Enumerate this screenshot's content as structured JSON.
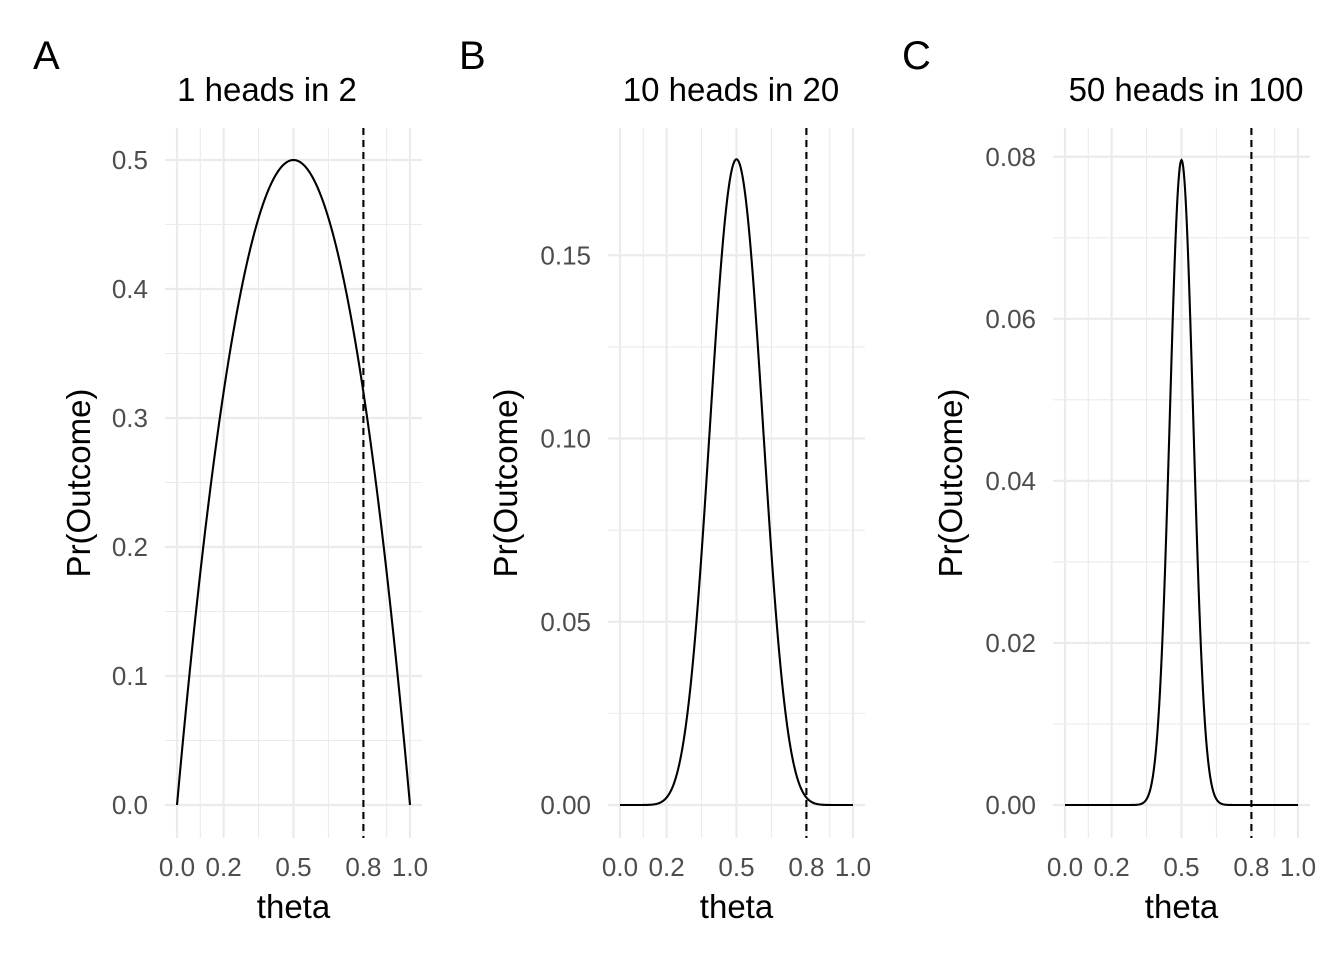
{
  "chart_data": [
    {
      "type": "line",
      "tag": "A",
      "title": "1 heads in 2",
      "xlabel": "theta",
      "ylabel": "Pr(Outcome)",
      "xlim": [
        0,
        1
      ],
      "ylim": [
        0,
        0.5
      ],
      "x_ticks": [
        0.0,
        0.2,
        0.5,
        0.8,
        1.0
      ],
      "x_tick_labels": [
        "0.0",
        "0.2",
        "0.5",
        "0.8",
        "1.0"
      ],
      "y_ticks": [
        0.0,
        0.1,
        0.2,
        0.3,
        0.4,
        0.5
      ],
      "y_tick_labels": [
        "0.0",
        "0.1",
        "0.2",
        "0.3",
        "0.4",
        "0.5"
      ],
      "heads": 1,
      "trials": 2,
      "curve_x": [
        0.0,
        0.05,
        0.1,
        0.15,
        0.2,
        0.25,
        0.3,
        0.35,
        0.4,
        0.45,
        0.5,
        0.55,
        0.6,
        0.65,
        0.7,
        0.75,
        0.8,
        0.85,
        0.9,
        0.95,
        1.0
      ],
      "curve_y": [
        0.0,
        0.095,
        0.18,
        0.255,
        0.32,
        0.375,
        0.42,
        0.455,
        0.48,
        0.495,
        0.5,
        0.495,
        0.48,
        0.455,
        0.42,
        0.375,
        0.32,
        0.255,
        0.18,
        0.095,
        0.0
      ],
      "reference_line_x": 0.8,
      "grid": true
    },
    {
      "type": "line",
      "tag": "B",
      "title": "10 heads in 20",
      "xlabel": "theta",
      "ylabel": "Pr(Outcome)",
      "xlim": [
        0,
        1
      ],
      "ylim": [
        0,
        0.176
      ],
      "x_ticks": [
        0.0,
        0.2,
        0.5,
        0.8,
        1.0
      ],
      "x_tick_labels": [
        "0.0",
        "0.2",
        "0.5",
        "0.8",
        "1.0"
      ],
      "y_ticks": [
        0.0,
        0.05,
        0.1,
        0.15
      ],
      "y_tick_labels": [
        "0.00",
        "0.05",
        "0.10",
        "0.15"
      ],
      "heads": 10,
      "trials": 20,
      "curve_x": [
        0.0,
        0.05,
        0.1,
        0.15,
        0.2,
        0.25,
        0.3,
        0.35,
        0.4,
        0.45,
        0.5,
        0.55,
        0.6,
        0.65,
        0.7,
        0.75,
        0.8,
        0.85,
        0.9,
        0.95,
        1.0
      ],
      "curve_y": [
        0.0,
        0.0,
        0.0001,
        0.0016,
        0.002,
        0.0099,
        0.0308,
        0.0686,
        0.1171,
        0.1593,
        0.1762,
        0.1593,
        0.1171,
        0.0686,
        0.0308,
        0.0099,
        0.002,
        0.0002,
        0.0,
        0.0,
        0.0
      ],
      "reference_line_x": 0.8,
      "grid": true
    },
    {
      "type": "line",
      "tag": "C",
      "title": "50 heads in 100",
      "xlabel": "theta",
      "ylabel": "Pr(Outcome)",
      "xlim": [
        0,
        1
      ],
      "ylim": [
        0,
        0.0796
      ],
      "x_ticks": [
        0.0,
        0.2,
        0.5,
        0.8,
        1.0
      ],
      "x_tick_labels": [
        "0.0",
        "0.2",
        "0.5",
        "0.8",
        "1.0"
      ],
      "y_ticks": [
        0.0,
        0.02,
        0.04,
        0.06,
        0.08
      ],
      "y_tick_labels": [
        "0.00",
        "0.02",
        "0.04",
        "0.06",
        "0.08"
      ],
      "heads": 50,
      "trials": 100,
      "curve_x": [
        0.0,
        0.3,
        0.35,
        0.38,
        0.4,
        0.42,
        0.44,
        0.46,
        0.48,
        0.5,
        0.52,
        0.54,
        0.56,
        0.58,
        0.6,
        0.62,
        0.65,
        0.7,
        1.0
      ],
      "curve_y": [
        0.0,
        0.0,
        0.0008,
        0.0048,
        0.0109,
        0.022,
        0.0384,
        0.0576,
        0.0736,
        0.0796,
        0.0736,
        0.0576,
        0.0384,
        0.022,
        0.0109,
        0.0048,
        0.0008,
        0.0,
        0.0
      ],
      "reference_line_x": 0.8,
      "grid": true
    }
  ]
}
